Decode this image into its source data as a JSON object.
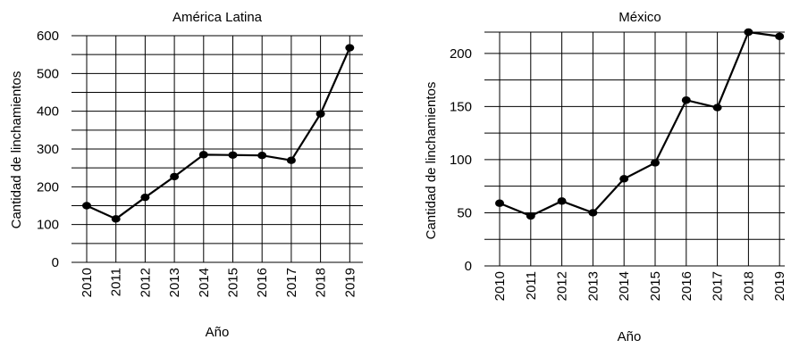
{
  "chart_data": [
    {
      "type": "line",
      "title": "América Latina",
      "xlabel": "Año",
      "ylabel": "Cantidad de linchamientos",
      "categories": [
        "2010",
        "2011",
        "2012",
        "2013",
        "2014",
        "2015",
        "2016",
        "2017",
        "2018",
        "2019"
      ],
      "values": [
        150,
        115,
        172,
        227,
        285,
        284,
        283,
        270,
        393,
        568
      ],
      "ylim": [
        0,
        600
      ],
      "yticks": [
        0,
        100,
        200,
        300,
        400,
        500,
        600
      ],
      "grid": true
    },
    {
      "type": "line",
      "title": "México",
      "xlabel": "Año",
      "ylabel": "Cantidad de linchamientos",
      "categories": [
        "2010",
        "2011",
        "2012",
        "2013",
        "2014",
        "2015",
        "2016",
        "2017",
        "2018",
        "2019"
      ],
      "values": [
        59,
        47,
        61,
        50,
        82,
        97,
        156,
        149,
        220,
        216
      ],
      "ylim": [
        0,
        220
      ],
      "yticks": [
        0,
        50,
        100,
        150,
        200
      ],
      "grid": true
    }
  ]
}
